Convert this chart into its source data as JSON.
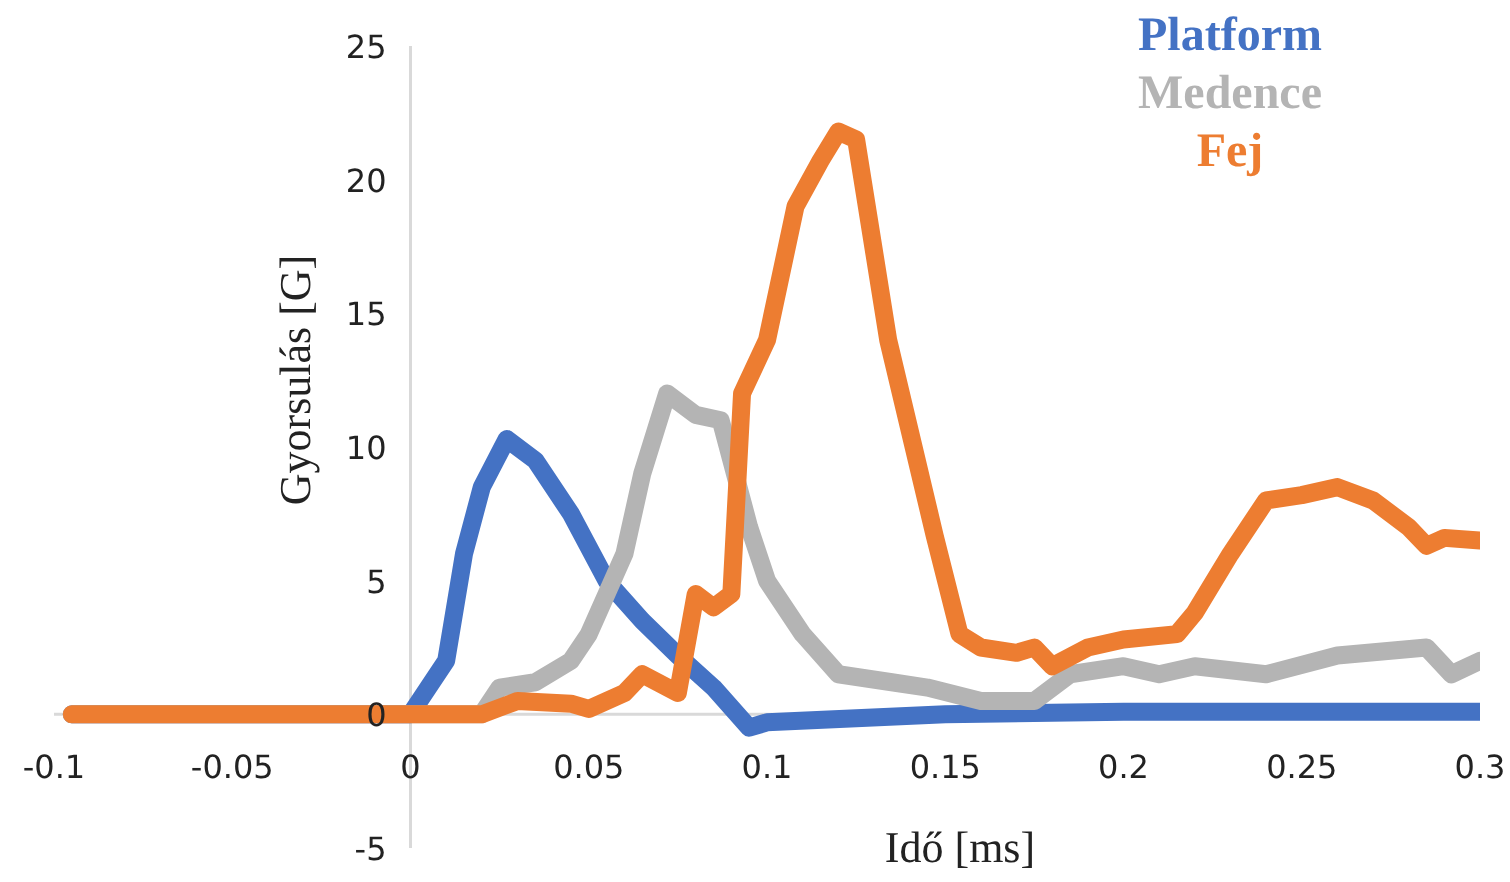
{
  "chart_data": {
    "type": "line",
    "xlabel": "Idő [ms]",
    "ylabel": "Gyorsulás [G]",
    "xlim": [
      -0.1,
      0.3
    ],
    "xticks": [
      -0.1,
      -0.05,
      0,
      0.05,
      0.1,
      0.15,
      0.2,
      0.25,
      0.3
    ],
    "ylim": [
      -5,
      25
    ],
    "yticks": [
      -5,
      0,
      5,
      10,
      15,
      20,
      25
    ],
    "grid": false,
    "legend": "top right",
    "marker": "none",
    "line_style": "solid",
    "series": [
      {
        "name": "Platform",
        "color": "#4472c4",
        "x": [
          -0.095,
          0,
          0.005,
          0.01,
          0.015,
          0.02,
          0.027,
          0.035,
          0.045,
          0.055,
          0.065,
          0.075,
          0.085,
          0.095,
          0.1,
          0.15,
          0.2,
          0.3
        ],
        "values": [
          0,
          0,
          1,
          2,
          6,
          8.5,
          10.3,
          9.5,
          7.5,
          5,
          3.5,
          2.2,
          1,
          -0.5,
          -0.3,
          0,
          0.1,
          0.1
        ]
      },
      {
        "name": "Medence",
        "color": "#b4b4b4",
        "x": [
          -0.095,
          0.02,
          0.025,
          0.035,
          0.045,
          0.05,
          0.06,
          0.065,
          0.072,
          0.08,
          0.087,
          0.095,
          0.1,
          0.11,
          0.12,
          0.135,
          0.145,
          0.16,
          0.175,
          0.185,
          0.2,
          0.21,
          0.22,
          0.24,
          0.26,
          0.285,
          0.292,
          0.3
        ],
        "values": [
          0,
          0,
          1,
          1.2,
          2,
          3,
          6,
          9,
          12,
          11.2,
          11,
          7,
          5,
          3,
          1.5,
          1.2,
          1,
          0.5,
          0.5,
          1.5,
          1.8,
          1.5,
          1.8,
          1.5,
          2.2,
          2.5,
          1.5,
          2
        ]
      },
      {
        "name": "Fej",
        "color": "#ed7d31",
        "x": [
          -0.095,
          0.02,
          0.03,
          0.045,
          0.05,
          0.06,
          0.065,
          0.075,
          0.08,
          0.085,
          0.09,
          0.093,
          0.1,
          0.108,
          0.115,
          0.12,
          0.125,
          0.134,
          0.147,
          0.154,
          0.16,
          0.17,
          0.175,
          0.18,
          0.19,
          0.2,
          0.215,
          0.22,
          0.23,
          0.24,
          0.25,
          0.26,
          0.27,
          0.28,
          0.285,
          0.29,
          0.3
        ],
        "values": [
          0,
          0,
          0.5,
          0.4,
          0.2,
          0.8,
          1.5,
          0.8,
          4.5,
          4,
          4.5,
          12,
          14,
          19,
          20.7,
          21.8,
          21.5,
          14,
          6.7,
          3,
          2.5,
          2.3,
          2.5,
          1.8,
          2.5,
          2.8,
          3,
          3.8,
          6,
          8,
          8.2,
          8.5,
          8,
          7,
          6.3,
          6.6,
          6.5
        ]
      }
    ]
  }
}
